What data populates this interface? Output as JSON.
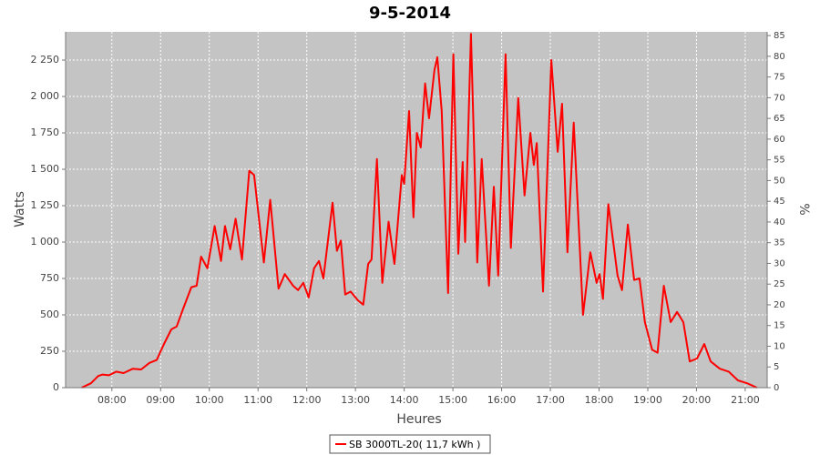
{
  "chart_data": {
    "type": "line",
    "title": "9-5-2014",
    "x_label": "Heures",
    "y_label": "Watts",
    "y2_label": "%",
    "x": [
      7.38,
      7.57,
      7.72,
      7.81,
      7.94,
      8.09,
      8.24,
      8.43,
      8.6,
      8.77,
      8.92,
      9.07,
      9.22,
      9.33,
      9.46,
      9.63,
      9.74,
      9.83,
      9.96,
      10.11,
      10.24,
      10.32,
      10.43,
      10.54,
      10.67,
      10.82,
      10.92,
      11.12,
      11.25,
      11.42,
      11.55,
      11.72,
      11.82,
      11.93,
      12.04,
      12.15,
      12.25,
      12.34,
      12.53,
      12.62,
      12.7,
      12.79,
      12.9,
      13.05,
      13.16,
      13.26,
      13.33,
      13.44,
      13.55,
      13.68,
      13.8,
      13.95,
      14.0,
      14.1,
      14.19,
      14.26,
      14.34,
      14.43,
      14.51,
      14.62,
      14.68,
      14.77,
      14.9,
      15.01,
      15.11,
      15.2,
      15.25,
      15.37,
      15.5,
      15.59,
      15.74,
      15.84,
      15.93,
      16.08,
      16.19,
      16.34,
      16.47,
      16.59,
      16.66,
      16.72,
      16.85,
      17.02,
      17.15,
      17.24,
      17.35,
      17.48,
      17.67,
      17.82,
      17.95,
      18.01,
      18.08,
      18.19,
      18.38,
      18.47,
      18.59,
      18.72,
      18.83,
      18.94,
      19.09,
      19.2,
      19.33,
      19.47,
      19.6,
      19.73,
      19.86,
      20.01,
      20.16,
      20.29,
      20.48,
      20.66,
      20.85,
      21.04,
      21.24
    ],
    "series": [
      {
        "name": "SB 3000TL-20( 11,7 kWh )",
        "color": "#ff0000",
        "values": [
          0,
          30,
          80,
          90,
          85,
          110,
          100,
          130,
          125,
          170,
          190,
          300,
          400,
          420,
          540,
          690,
          700,
          900,
          820,
          1110,
          870,
          1110,
          950,
          1160,
          880,
          1490,
          1460,
          860,
          1290,
          680,
          780,
          700,
          670,
          720,
          620,
          820,
          870,
          750,
          1270,
          940,
          1010,
          640,
          660,
          600,
          570,
          850,
          880,
          1570,
          720,
          1140,
          850,
          1460,
          1400,
          1900,
          1170,
          1750,
          1650,
          2090,
          1850,
          2180,
          2270,
          1900,
          650,
          2290,
          920,
          1550,
          1000,
          2430,
          860,
          1570,
          700,
          1380,
          770,
          2290,
          960,
          1990,
          1320,
          1750,
          1530,
          1680,
          660,
          2250,
          1620,
          1950,
          930,
          1820,
          500,
          930,
          720,
          780,
          610,
          1260,
          770,
          670,
          1120,
          740,
          750,
          450,
          260,
          240,
          700,
          450,
          520,
          450,
          180,
          200,
          300,
          180,
          130,
          110,
          50,
          30,
          0
        ]
      }
    ],
    "xlim": [
      7.05,
      21.45
    ],
    "xticks": [
      {
        "value": 8,
        "label": "08:00"
      },
      {
        "value": 9,
        "label": "09:00"
      },
      {
        "value": 10,
        "label": "10:00"
      },
      {
        "value": 11,
        "label": "11:00"
      },
      {
        "value": 12,
        "label": "12:00"
      },
      {
        "value": 13,
        "label": "13:00"
      },
      {
        "value": 14,
        "label": "14:00"
      },
      {
        "value": 15,
        "label": "15:00"
      },
      {
        "value": 16,
        "label": "16:00"
      },
      {
        "value": 17,
        "label": "17:00"
      },
      {
        "value": 18,
        "label": "18:00"
      },
      {
        "value": 19,
        "label": "19:00"
      },
      {
        "value": 20,
        "label": "20:00"
      },
      {
        "value": 21,
        "label": "21:00"
      }
    ],
    "ylim": [
      0,
      2444
    ],
    "yticks": [
      0,
      250,
      500,
      750,
      {
        "value": 1000,
        "label": "1 000"
      },
      {
        "value": 1250,
        "label": "1 250"
      },
      {
        "value": 1500,
        "label": "1 500"
      },
      {
        "value": 1750,
        "label": "1 750"
      },
      {
        "value": 2000,
        "label": "2 000"
      },
      {
        "value": 2250,
        "label": "2 250"
      }
    ],
    "y2lim": [
      0,
      85.9
    ],
    "y2ticks": [
      0,
      5,
      10,
      15,
      20,
      25,
      30,
      35,
      40,
      45,
      50,
      55,
      60,
      65,
      70,
      75,
      80,
      85
    ],
    "grid": true,
    "legend": "bottom"
  }
}
